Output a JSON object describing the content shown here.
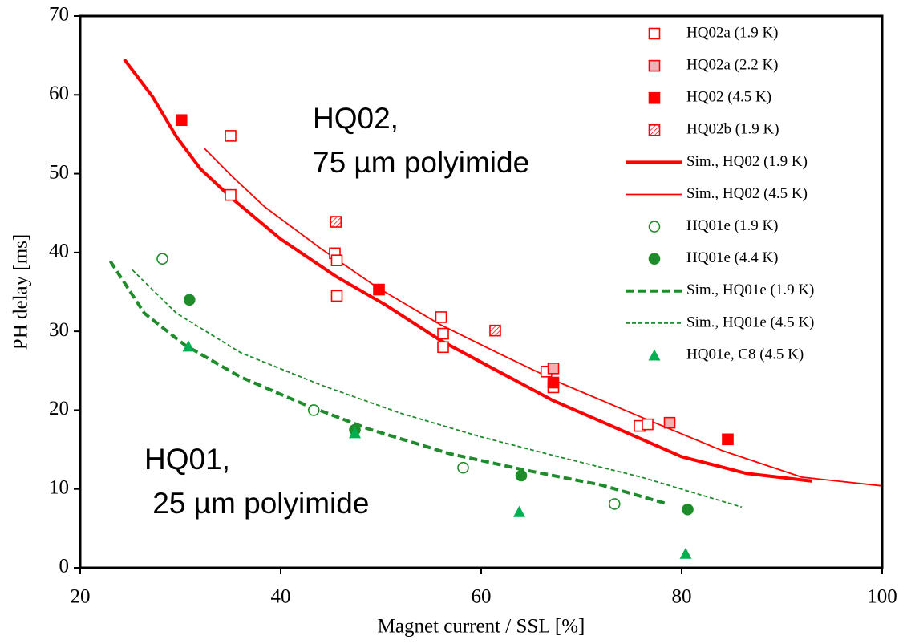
{
  "chart_data": {
    "type": "scatter",
    "xlabel": "Magnet current / SSL [%]",
    "ylabel": "PH delay [ms]",
    "xlim": [
      20,
      100
    ],
    "xticks": [
      20,
      40,
      60,
      80,
      100
    ],
    "ylim": [
      0,
      70
    ],
    "yticks": [
      0,
      10,
      20,
      30,
      40,
      50,
      60,
      70
    ],
    "legend": "upper right",
    "series": [
      {
        "name": "HQ02a (1.9 K)",
        "color": "#ff0000",
        "marker": "square-open",
        "x": [
          35,
          35,
          45.4,
          45.6,
          45.6,
          56,
          56.2,
          56.2,
          66.5,
          67.2,
          75.8,
          76.6
        ],
        "values": [
          54.8,
          47.3,
          39.9,
          39.0,
          34.5,
          31.8,
          29.7,
          28.0,
          24.9,
          22.9,
          18.0,
          18.2
        ]
      },
      {
        "name": "HQ02a (2.2 K)",
        "color": "#ff0000",
        "marker": "square-shaded",
        "x": [
          67.2,
          78.8
        ],
        "values": [
          25.3,
          18.4
        ]
      },
      {
        "name": "HQ02 (4.5 K)",
        "color": "#ff0000",
        "marker": "square-filled",
        "x": [
          30.1,
          49.8,
          67.2,
          84.6
        ],
        "values": [
          56.8,
          35.3,
          23.5,
          16.3
        ]
      },
      {
        "name": "HQ02b (1.9 K)",
        "color": "#ff0000",
        "marker": "square-hatched",
        "x": [
          45.5,
          61.4
        ],
        "values": [
          43.9,
          30.1
        ]
      },
      {
        "name": "Sim., HQ02 (1.9 K)",
        "color": "#ff0000",
        "line": "solid-thick",
        "x": [
          24.4,
          27.2,
          29.6,
          32,
          35.2,
          40,
          45.6,
          50.4,
          56,
          61.6,
          67.2,
          72.8,
          80,
          86.4,
          93
        ],
        "values": [
          64.5,
          59.8,
          54.7,
          50.6,
          46.8,
          41.7,
          36.9,
          33.4,
          28.8,
          25.0,
          21.2,
          18.1,
          14.1,
          12.0,
          11.0
        ]
      },
      {
        "name": "Sim., HQ02 (4.5 K)",
        "color": "#ff0000",
        "line": "solid-thin",
        "x": [
          32.4,
          35.2,
          38.4,
          44,
          49.6,
          56,
          61.6,
          68,
          76,
          84,
          92,
          100
        ],
        "values": [
          53.2,
          49.6,
          45.8,
          40.5,
          35.6,
          30.8,
          27.3,
          23.4,
          19.1,
          14.9,
          11.5,
          10.4
        ]
      },
      {
        "name": "HQ01e (1.9 K)",
        "color": "#1e8c2a",
        "marker": "circle-open",
        "x": [
          28.2,
          43.3,
          58.2,
          73.3
        ],
        "values": [
          39.2,
          20.0,
          12.7,
          8.1
        ]
      },
      {
        "name": "HQ01e (4.4 K)",
        "color": "#1e8c2a",
        "marker": "circle-filled",
        "x": [
          30.9,
          47.4,
          64,
          80.6
        ],
        "values": [
          34.0,
          17.5,
          11.7,
          7.4
        ]
      },
      {
        "name": "Sim., HQ01e (1.9 K)",
        "color": "#1e8c2a",
        "line": "dashed-thick",
        "x": [
          23,
          26.4,
          30.4,
          36,
          42.4,
          48.8,
          56.8,
          64,
          72,
          78.6
        ],
        "values": [
          38.9,
          32.3,
          28.3,
          24.2,
          20.7,
          17.6,
          14.5,
          12.5,
          10.5,
          8.1
        ]
      },
      {
        "name": "Sim., HQ01e (4.5 K)",
        "color": "#1e8c2a",
        "line": "dashed-thin",
        "x": [
          25.2,
          29.6,
          36,
          44,
          52,
          60,
          68,
          76,
          86
        ],
        "values": [
          37.8,
          32.3,
          27.3,
          23.2,
          19.6,
          16.6,
          14.0,
          11.5,
          7.7
        ]
      },
      {
        "name": "HQ01e, C8 (4.5 K)",
        "color": "#00b050",
        "marker": "triangle-filled",
        "x": [
          30.8,
          47.4,
          63.8,
          80.4
        ],
        "values": [
          28.1,
          17.1,
          7.1,
          1.8
        ]
      }
    ],
    "annotations": [
      {
        "lines": [
          "HQ02,",
          "75 µm polyimide"
        ],
        "color": "#ff0000"
      },
      {
        "lines": [
          "HQ01,",
          " 25 µm polyimide"
        ],
        "color": "#00b050"
      }
    ]
  }
}
